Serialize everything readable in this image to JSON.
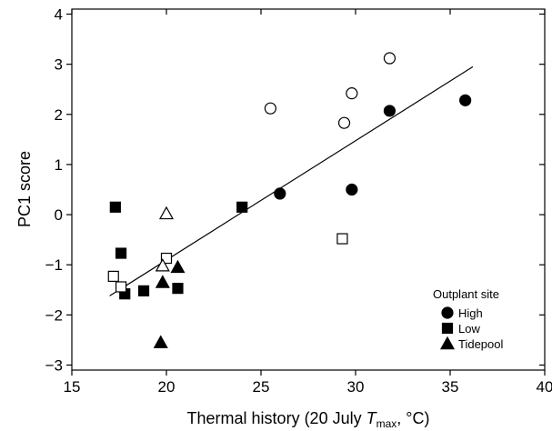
{
  "chart_data": {
    "type": "scatter",
    "xlabel_parts": {
      "prefix": "Thermal history (20 July ",
      "var": "T",
      "sub": "max",
      "suffix": ", °C)"
    },
    "ylabel": "PC1 score",
    "xlim": [
      15,
      40
    ],
    "ylim": [
      -3.1,
      4.1
    ],
    "xticks": [
      15,
      20,
      25,
      30,
      35,
      40
    ],
    "yticks": [
      -3,
      -2,
      -1,
      0,
      1,
      2,
      3,
      4
    ],
    "xtick_labels": [
      "15",
      "20",
      "25",
      "30",
      "35",
      "40"
    ],
    "ytick_labels": [
      "−3",
      "−2",
      "−1",
      "0",
      "1",
      "2",
      "3",
      "4"
    ],
    "grid": false,
    "legend": {
      "title": "Outplant site",
      "placement": "bottom-right",
      "entries": [
        {
          "label": "High",
          "marker": "circle"
        },
        {
          "label": "Low",
          "marker": "square"
        },
        {
          "label": "Tidepool",
          "marker": "triangle"
        }
      ]
    },
    "series": [
      {
        "name": "High",
        "marker": "circle",
        "points": [
          {
            "x": 26.0,
            "y": 0.42,
            "filled": true
          },
          {
            "x": 29.8,
            "y": 0.5,
            "filled": true
          },
          {
            "x": 31.8,
            "y": 2.07,
            "filled": true
          },
          {
            "x": 35.8,
            "y": 2.28,
            "filled": true
          },
          {
            "x": 25.5,
            "y": 2.12,
            "filled": false
          },
          {
            "x": 29.4,
            "y": 1.83,
            "filled": false
          },
          {
            "x": 29.8,
            "y": 2.42,
            "filled": false
          },
          {
            "x": 31.8,
            "y": 3.12,
            "filled": false
          }
        ]
      },
      {
        "name": "Low",
        "marker": "square",
        "points": [
          {
            "x": 17.3,
            "y": 0.15,
            "filled": true
          },
          {
            "x": 17.6,
            "y": -0.77,
            "filled": true
          },
          {
            "x": 17.8,
            "y": -1.58,
            "filled": true
          },
          {
            "x": 18.8,
            "y": -1.52,
            "filled": true
          },
          {
            "x": 20.6,
            "y": -1.47,
            "filled": true
          },
          {
            "x": 24.0,
            "y": 0.15,
            "filled": true
          },
          {
            "x": 17.2,
            "y": -1.23,
            "filled": false
          },
          {
            "x": 17.6,
            "y": -1.44,
            "filled": false
          },
          {
            "x": 20.0,
            "y": -0.87,
            "filled": false
          },
          {
            "x": 29.3,
            "y": -0.48,
            "filled": false
          }
        ]
      },
      {
        "name": "Tidepool",
        "marker": "triangle",
        "points": [
          {
            "x": 19.7,
            "y": -2.55,
            "filled": true
          },
          {
            "x": 19.8,
            "y": -1.35,
            "filled": true
          },
          {
            "x": 20.6,
            "y": -1.05,
            "filled": true
          },
          {
            "x": 20.0,
            "y": 0.02,
            "filled": false
          },
          {
            "x": 19.8,
            "y": -1.02,
            "filled": false
          }
        ]
      }
    ],
    "regression_line": {
      "x": [
        17.0,
        36.2
      ],
      "y": [
        -1.62,
        2.95
      ]
    }
  }
}
